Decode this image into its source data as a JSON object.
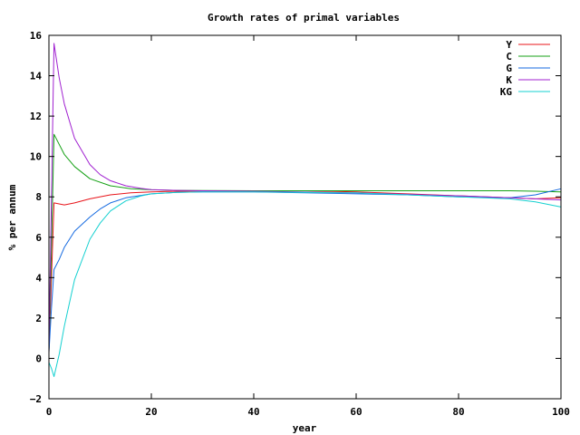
{
  "chart_data": {
    "type": "line",
    "title": "Growth rates of primal variables",
    "xlabel": "year",
    "ylabel": "% per annum",
    "xlim": [
      0,
      100
    ],
    "ylim": [
      -2,
      16
    ],
    "x_ticks": [
      "0",
      "20",
      "40",
      "60",
      "80",
      "100"
    ],
    "y_ticks": [
      "−2",
      "0",
      "2",
      "4",
      "6",
      "8",
      "10",
      "12",
      "14",
      "16"
    ],
    "grid": false,
    "legend_position": "top-right",
    "series": [
      {
        "name": "Y",
        "color": "#e8141a",
        "x": [
          0,
          0.5,
          1,
          2,
          3,
          5,
          8,
          12,
          16,
          20,
          25,
          30,
          40,
          50,
          60,
          70,
          80,
          90,
          95,
          100
        ],
        "y": [
          0.3,
          4.0,
          7.7,
          7.65,
          7.6,
          7.7,
          7.9,
          8.1,
          8.2,
          8.25,
          8.28,
          8.29,
          8.3,
          8.3,
          8.25,
          8.15,
          8.05,
          7.95,
          7.9,
          7.95
        ]
      },
      {
        "name": "C",
        "color": "#14a014",
        "x": [
          0,
          0.5,
          1,
          2,
          3,
          5,
          8,
          12,
          16,
          20,
          25,
          30,
          40,
          50,
          60,
          70,
          80,
          90,
          95,
          100
        ],
        "y": [
          0.4,
          5.5,
          11.1,
          10.6,
          10.1,
          9.5,
          8.9,
          8.55,
          8.4,
          8.35,
          8.32,
          8.31,
          8.3,
          8.3,
          8.3,
          8.3,
          8.3,
          8.3,
          8.28,
          8.25
        ]
      },
      {
        "name": "G",
        "color": "#1469e0",
        "x": [
          0,
          0.5,
          1,
          2,
          3,
          5,
          8,
          10,
          12,
          15,
          20,
          25,
          30,
          40,
          50,
          60,
          70,
          80,
          90,
          95,
          100
        ],
        "y": [
          0.3,
          2.5,
          4.4,
          4.9,
          5.5,
          6.3,
          7.0,
          7.4,
          7.7,
          7.95,
          8.15,
          8.22,
          8.25,
          8.25,
          8.2,
          8.15,
          8.1,
          8.0,
          7.95,
          8.1,
          8.4
        ]
      },
      {
        "name": "K",
        "color": "#a020d0",
        "x": [
          0,
          0.5,
          1,
          2,
          3,
          5,
          8,
          10,
          12,
          15,
          18,
          20,
          25,
          30,
          40,
          60,
          80,
          90,
          100
        ],
        "y": [
          0.5,
          8.0,
          15.6,
          13.9,
          12.6,
          10.9,
          9.6,
          9.1,
          8.8,
          8.55,
          8.42,
          8.36,
          8.32,
          8.3,
          8.28,
          8.2,
          8.05,
          7.95,
          7.85
        ]
      },
      {
        "name": "KG",
        "color": "#14d0d0",
        "x": [
          0,
          0.5,
          1,
          2,
          3,
          5,
          8,
          10,
          12,
          15,
          18,
          20,
          25,
          30,
          40,
          60,
          80,
          90,
          95,
          100
        ],
        "y": [
          -0.2,
          -0.5,
          -0.9,
          0.2,
          1.6,
          3.9,
          5.9,
          6.7,
          7.3,
          7.8,
          8.05,
          8.15,
          8.22,
          8.25,
          8.25,
          8.2,
          8.0,
          7.9,
          7.75,
          7.5
        ]
      }
    ]
  }
}
